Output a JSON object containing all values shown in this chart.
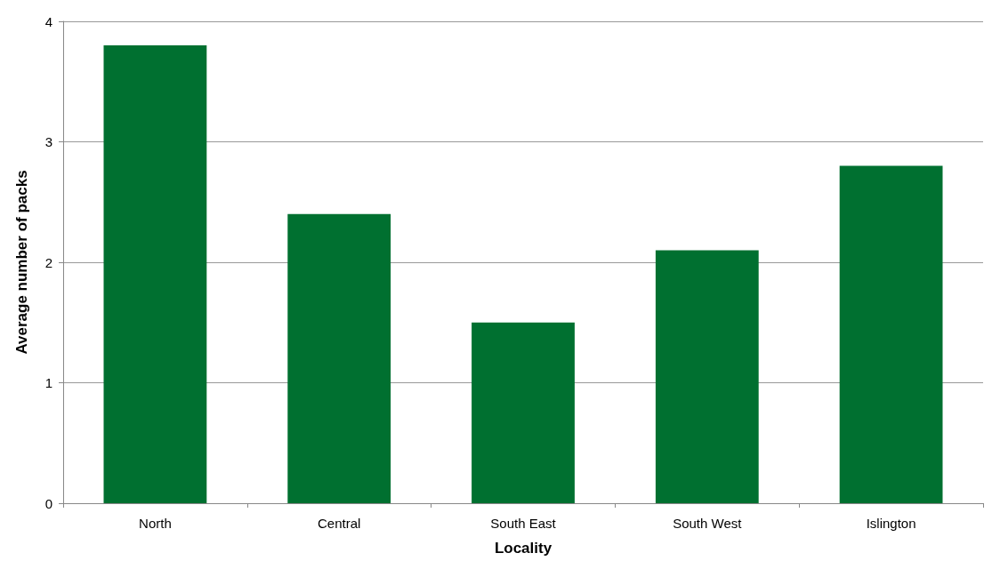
{
  "chart_data": {
    "type": "bar",
    "xlabel": "Locality",
    "ylabel": "Average number of packs",
    "categories": [
      "North",
      "Central",
      "South East",
      "South West",
      "Islington"
    ],
    "values": [
      3.8,
      2.4,
      1.5,
      2.1,
      2.8
    ],
    "color": "#007030",
    "ylim": [
      0,
      4
    ],
    "yticks": [
      0,
      1,
      2,
      3,
      4
    ],
    "grid": "y"
  }
}
